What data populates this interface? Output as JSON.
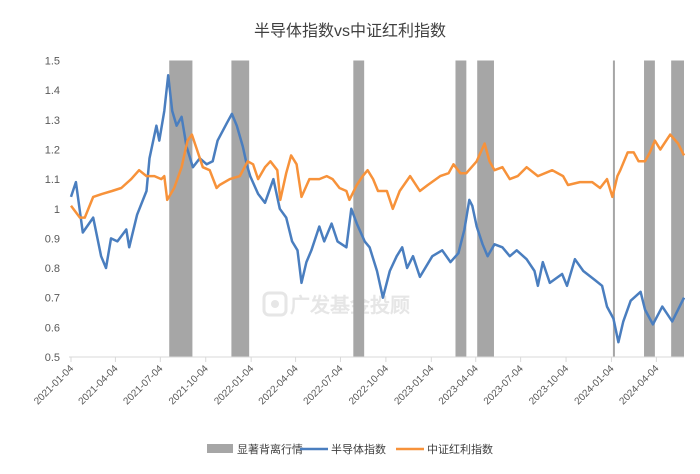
{
  "chart_data": {
    "type": "line",
    "title": "半导体指数vs中证红利指数",
    "xlabel": "",
    "ylabel": "",
    "ylim": [
      0.5,
      1.5
    ],
    "yticks": [
      "0.5",
      "0.6",
      "0.7",
      "0.8",
      "0.9",
      "1",
      "1.1",
      "1.2",
      "1.3",
      "1.4",
      "1.5"
    ],
    "xlim": [
      "2021-01-04",
      "2024-05-30"
    ],
    "xticks": [
      "2021-01-04",
      "2021-04-04",
      "2021-07-04",
      "2021-10-04",
      "2022-01-04",
      "2022-04-04",
      "2022-07-04",
      "2022-10-04",
      "2023-01-04",
      "2023-04-04",
      "2023-07-04",
      "2023-10-04",
      "2024-01-04",
      "2024-04-04"
    ],
    "grid": false,
    "legend_placement": "bottom",
    "watermark": "广发基金投顾",
    "bands": {
      "name": "显著背离行情",
      "color": "#a6a6a6",
      "ranges": [
        [
          "2021-07-22",
          "2021-09-07"
        ],
        [
          "2021-11-25",
          "2021-12-31"
        ],
        [
          "2022-07-30",
          "2022-08-21"
        ],
        [
          "2023-02-22",
          "2023-03-16"
        ],
        [
          "2023-04-07",
          "2023-05-11"
        ],
        [
          "2024-01-07",
          "2024-01-11"
        ],
        [
          "2024-03-10",
          "2024-04-01"
        ],
        [
          "2024-05-04",
          "2024-05-30"
        ]
      ]
    },
    "series": [
      {
        "name": "半导体指数",
        "color": "#4a7ebf",
        "points": [
          [
            "2021-01-04",
            1.04
          ],
          [
            "2021-01-14",
            1.09
          ],
          [
            "2021-01-28",
            0.92
          ],
          [
            "2021-02-18",
            0.97
          ],
          [
            "2021-03-06",
            0.84
          ],
          [
            "2021-03-16",
            0.8
          ],
          [
            "2021-03-26",
            0.9
          ],
          [
            "2021-04-08",
            0.89
          ],
          [
            "2021-04-26",
            0.93
          ],
          [
            "2021-05-02",
            0.87
          ],
          [
            "2021-05-18",
            0.98
          ],
          [
            "2021-06-06",
            1.06
          ],
          [
            "2021-06-12",
            1.17
          ],
          [
            "2021-06-26",
            1.28
          ],
          [
            "2021-07-02",
            1.23
          ],
          [
            "2021-07-12",
            1.33
          ],
          [
            "2021-07-20",
            1.45
          ],
          [
            "2021-07-28",
            1.33
          ],
          [
            "2021-08-06",
            1.28
          ],
          [
            "2021-08-16",
            1.31
          ],
          [
            "2021-08-26",
            1.21
          ],
          [
            "2021-09-08",
            1.14
          ],
          [
            "2021-09-22",
            1.17
          ],
          [
            "2021-10-06",
            1.15
          ],
          [
            "2021-10-18",
            1.16
          ],
          [
            "2021-10-28",
            1.23
          ],
          [
            "2021-11-16",
            1.29
          ],
          [
            "2021-11-26",
            1.32
          ],
          [
            "2021-12-06",
            1.28
          ],
          [
            "2021-12-18",
            1.21
          ],
          [
            "2021-12-26",
            1.15
          ],
          [
            "2022-01-02",
            1.11
          ],
          [
            "2022-01-18",
            1.05
          ],
          [
            "2022-02-01",
            1.02
          ],
          [
            "2022-02-18",
            1.1
          ],
          [
            "2022-03-03",
            1.0
          ],
          [
            "2022-03-16",
            0.97
          ],
          [
            "2022-03-28",
            0.89
          ],
          [
            "2022-04-08",
            0.86
          ],
          [
            "2022-04-16",
            0.75
          ],
          [
            "2022-04-26",
            0.82
          ],
          [
            "2022-05-06",
            0.86
          ],
          [
            "2022-05-22",
            0.94
          ],
          [
            "2022-06-01",
            0.89
          ],
          [
            "2022-06-16",
            0.95
          ],
          [
            "2022-06-28",
            0.89
          ],
          [
            "2022-07-16",
            0.87
          ],
          [
            "2022-07-26",
            1.0
          ],
          [
            "2022-08-06",
            0.95
          ],
          [
            "2022-08-22",
            0.89
          ],
          [
            "2022-09-01",
            0.87
          ],
          [
            "2022-09-16",
            0.79
          ],
          [
            "2022-09-28",
            0.7
          ],
          [
            "2022-10-12",
            0.79
          ],
          [
            "2022-10-26",
            0.84
          ],
          [
            "2022-11-06",
            0.87
          ],
          [
            "2022-11-16",
            0.8
          ],
          [
            "2022-11-28",
            0.84
          ],
          [
            "2022-12-12",
            0.77
          ],
          [
            "2023-01-06",
            0.84
          ],
          [
            "2023-01-26",
            0.86
          ],
          [
            "2023-02-12",
            0.82
          ],
          [
            "2023-02-28",
            0.85
          ],
          [
            "2023-03-12",
            0.93
          ],
          [
            "2023-03-22",
            1.03
          ],
          [
            "2023-03-28",
            1.01
          ],
          [
            "2023-04-06",
            0.94
          ],
          [
            "2023-04-18",
            0.88
          ],
          [
            "2023-04-28",
            0.84
          ],
          [
            "2023-05-12",
            0.88
          ],
          [
            "2023-05-28",
            0.87
          ],
          [
            "2023-06-12",
            0.84
          ],
          [
            "2023-06-26",
            0.86
          ],
          [
            "2023-07-16",
            0.83
          ],
          [
            "2023-08-01",
            0.79
          ],
          [
            "2023-08-08",
            0.74
          ],
          [
            "2023-08-18",
            0.82
          ],
          [
            "2023-09-01",
            0.75
          ],
          [
            "2023-09-26",
            0.78
          ],
          [
            "2023-10-06",
            0.74
          ],
          [
            "2023-10-22",
            0.83
          ],
          [
            "2023-11-08",
            0.79
          ],
          [
            "2023-12-01",
            0.76
          ],
          [
            "2023-12-16",
            0.74
          ],
          [
            "2023-12-26",
            0.67
          ],
          [
            "2024-01-08",
            0.63
          ],
          [
            "2024-01-18",
            0.55
          ],
          [
            "2024-01-28",
            0.62
          ],
          [
            "2024-02-12",
            0.69
          ],
          [
            "2024-03-03",
            0.72
          ],
          [
            "2024-03-12",
            0.66
          ],
          [
            "2024-03-28",
            0.61
          ],
          [
            "2024-04-16",
            0.67
          ],
          [
            "2024-05-06",
            0.62
          ],
          [
            "2024-05-18",
            0.66
          ],
          [
            "2024-05-30",
            0.7
          ]
        ]
      },
      {
        "name": "中证红利指数",
        "color": "#f7923a",
        "points": [
          [
            "2021-01-04",
            1.01
          ],
          [
            "2021-01-22",
            0.97
          ],
          [
            "2021-02-01",
            0.97
          ],
          [
            "2021-02-18",
            1.04
          ],
          [
            "2021-03-08",
            1.05
          ],
          [
            "2021-03-28",
            1.06
          ],
          [
            "2021-04-16",
            1.07
          ],
          [
            "2021-05-06",
            1.1
          ],
          [
            "2021-05-22",
            1.13
          ],
          [
            "2021-06-06",
            1.11
          ],
          [
            "2021-06-22",
            1.11
          ],
          [
            "2021-07-06",
            1.1
          ],
          [
            "2021-07-12",
            1.11
          ],
          [
            "2021-07-18",
            1.03
          ],
          [
            "2021-08-01",
            1.07
          ],
          [
            "2021-08-16",
            1.14
          ],
          [
            "2021-08-28",
            1.23
          ],
          [
            "2021-09-06",
            1.25
          ],
          [
            "2021-09-16",
            1.2
          ],
          [
            "2021-09-28",
            1.14
          ],
          [
            "2021-10-12",
            1.13
          ],
          [
            "2021-10-26",
            1.07
          ],
          [
            "2021-11-01",
            1.08
          ],
          [
            "2021-11-22",
            1.1
          ],
          [
            "2021-12-12",
            1.11
          ],
          [
            "2021-12-28",
            1.16
          ],
          [
            "2022-01-08",
            1.15
          ],
          [
            "2022-01-18",
            1.1
          ],
          [
            "2022-02-01",
            1.14
          ],
          [
            "2022-02-12",
            1.16
          ],
          [
            "2022-02-26",
            1.13
          ],
          [
            "2022-03-04",
            1.03
          ],
          [
            "2022-03-16",
            1.12
          ],
          [
            "2022-03-26",
            1.18
          ],
          [
            "2022-04-06",
            1.15
          ],
          [
            "2022-04-16",
            1.04
          ],
          [
            "2022-05-02",
            1.1
          ],
          [
            "2022-05-22",
            1.1
          ],
          [
            "2022-06-06",
            1.11
          ],
          [
            "2022-06-18",
            1.1
          ],
          [
            "2022-07-02",
            1.07
          ],
          [
            "2022-07-16",
            1.06
          ],
          [
            "2022-07-22",
            1.03
          ],
          [
            "2022-08-06",
            1.08
          ],
          [
            "2022-08-18",
            1.11
          ],
          [
            "2022-08-28",
            1.13
          ],
          [
            "2022-09-08",
            1.1
          ],
          [
            "2022-09-18",
            1.06
          ],
          [
            "2022-10-06",
            1.06
          ],
          [
            "2022-10-18",
            1.0
          ],
          [
            "2022-11-01",
            1.06
          ],
          [
            "2022-11-22",
            1.11
          ],
          [
            "2022-12-12",
            1.06
          ],
          [
            "2022-12-28",
            1.08
          ],
          [
            "2023-01-22",
            1.11
          ],
          [
            "2023-02-08",
            1.12
          ],
          [
            "2023-02-18",
            1.15
          ],
          [
            "2023-03-04",
            1.12
          ],
          [
            "2023-03-16",
            1.12
          ],
          [
            "2023-04-06",
            1.16
          ],
          [
            "2023-04-22",
            1.22
          ],
          [
            "2023-05-02",
            1.16
          ],
          [
            "2023-05-12",
            1.13
          ],
          [
            "2023-05-28",
            1.14
          ],
          [
            "2023-06-12",
            1.1
          ],
          [
            "2023-06-28",
            1.11
          ],
          [
            "2023-07-16",
            1.14
          ],
          [
            "2023-08-08",
            1.11
          ],
          [
            "2023-09-06",
            1.13
          ],
          [
            "2023-09-28",
            1.11
          ],
          [
            "2023-10-08",
            1.08
          ],
          [
            "2023-11-01",
            1.09
          ],
          [
            "2023-11-26",
            1.09
          ],
          [
            "2023-12-12",
            1.07
          ],
          [
            "2023-12-26",
            1.1
          ],
          [
            "2024-01-06",
            1.04
          ],
          [
            "2024-01-16",
            1.11
          ],
          [
            "2024-01-22",
            1.13
          ],
          [
            "2024-02-06",
            1.19
          ],
          [
            "2024-02-18",
            1.19
          ],
          [
            "2024-02-28",
            1.16
          ],
          [
            "2024-03-12",
            1.16
          ],
          [
            "2024-03-22",
            1.19
          ],
          [
            "2024-04-01",
            1.23
          ],
          [
            "2024-04-12",
            1.2
          ],
          [
            "2024-05-02",
            1.25
          ],
          [
            "2024-05-18",
            1.22
          ],
          [
            "2024-05-30",
            1.18
          ]
        ]
      }
    ]
  }
}
